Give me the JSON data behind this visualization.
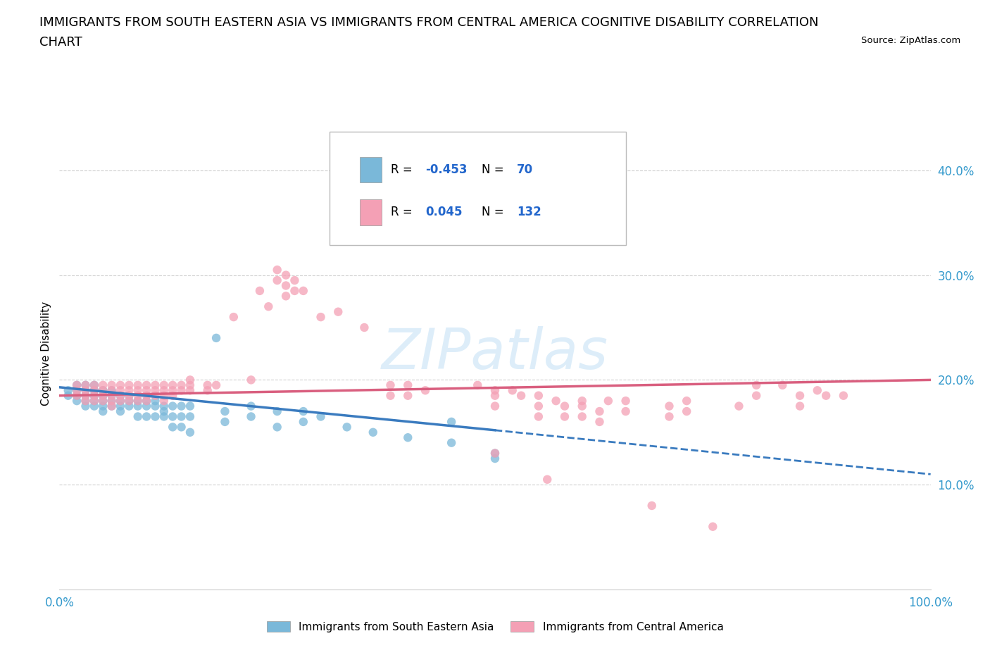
{
  "title_line1": "IMMIGRANTS FROM SOUTH EASTERN ASIA VS IMMIGRANTS FROM CENTRAL AMERICA COGNITIVE DISABILITY CORRELATION",
  "title_line2": "CHART",
  "source": "Source: ZipAtlas.com",
  "ylabel": "Cognitive Disability",
  "watermark": "ZIPatlas",
  "r_blue": -0.453,
  "n_blue": 70,
  "r_pink": 0.045,
  "n_pink": 132,
  "blue_color": "#7ab8d9",
  "pink_color": "#f4a0b5",
  "blue_line_color": "#3a7bbf",
  "pink_line_color": "#d95f7f",
  "blue_scatter": [
    [
      0.01,
      0.19
    ],
    [
      0.01,
      0.185
    ],
    [
      0.02,
      0.195
    ],
    [
      0.02,
      0.19
    ],
    [
      0.02,
      0.185
    ],
    [
      0.02,
      0.18
    ],
    [
      0.03,
      0.195
    ],
    [
      0.03,
      0.19
    ],
    [
      0.03,
      0.185
    ],
    [
      0.03,
      0.18
    ],
    [
      0.03,
      0.175
    ],
    [
      0.04,
      0.195
    ],
    [
      0.04,
      0.19
    ],
    [
      0.04,
      0.185
    ],
    [
      0.04,
      0.18
    ],
    [
      0.04,
      0.175
    ],
    [
      0.05,
      0.19
    ],
    [
      0.05,
      0.185
    ],
    [
      0.05,
      0.18
    ],
    [
      0.05,
      0.175
    ],
    [
      0.05,
      0.17
    ],
    [
      0.06,
      0.19
    ],
    [
      0.06,
      0.185
    ],
    [
      0.06,
      0.18
    ],
    [
      0.06,
      0.175
    ],
    [
      0.07,
      0.185
    ],
    [
      0.07,
      0.18
    ],
    [
      0.07,
      0.175
    ],
    [
      0.07,
      0.17
    ],
    [
      0.08,
      0.185
    ],
    [
      0.08,
      0.18
    ],
    [
      0.08,
      0.175
    ],
    [
      0.09,
      0.18
    ],
    [
      0.09,
      0.175
    ],
    [
      0.09,
      0.165
    ],
    [
      0.1,
      0.18
    ],
    [
      0.1,
      0.175
    ],
    [
      0.1,
      0.165
    ],
    [
      0.11,
      0.18
    ],
    [
      0.11,
      0.175
    ],
    [
      0.11,
      0.165
    ],
    [
      0.12,
      0.175
    ],
    [
      0.12,
      0.17
    ],
    [
      0.12,
      0.165
    ],
    [
      0.13,
      0.175
    ],
    [
      0.13,
      0.165
    ],
    [
      0.13,
      0.155
    ],
    [
      0.14,
      0.175
    ],
    [
      0.14,
      0.165
    ],
    [
      0.14,
      0.155
    ],
    [
      0.15,
      0.175
    ],
    [
      0.15,
      0.165
    ],
    [
      0.15,
      0.15
    ],
    [
      0.18,
      0.24
    ],
    [
      0.19,
      0.17
    ],
    [
      0.19,
      0.16
    ],
    [
      0.22,
      0.175
    ],
    [
      0.22,
      0.165
    ],
    [
      0.25,
      0.17
    ],
    [
      0.25,
      0.155
    ],
    [
      0.28,
      0.17
    ],
    [
      0.28,
      0.16
    ],
    [
      0.3,
      0.165
    ],
    [
      0.33,
      0.155
    ],
    [
      0.36,
      0.15
    ],
    [
      0.4,
      0.145
    ],
    [
      0.45,
      0.16
    ],
    [
      0.45,
      0.14
    ],
    [
      0.5,
      0.13
    ],
    [
      0.5,
      0.125
    ]
  ],
  "pink_scatter": [
    [
      0.02,
      0.195
    ],
    [
      0.02,
      0.19
    ],
    [
      0.02,
      0.185
    ],
    [
      0.03,
      0.195
    ],
    [
      0.03,
      0.19
    ],
    [
      0.03,
      0.185
    ],
    [
      0.03,
      0.18
    ],
    [
      0.04,
      0.195
    ],
    [
      0.04,
      0.19
    ],
    [
      0.04,
      0.185
    ],
    [
      0.04,
      0.18
    ],
    [
      0.05,
      0.195
    ],
    [
      0.05,
      0.19
    ],
    [
      0.05,
      0.185
    ],
    [
      0.05,
      0.18
    ],
    [
      0.06,
      0.195
    ],
    [
      0.06,
      0.19
    ],
    [
      0.06,
      0.185
    ],
    [
      0.06,
      0.18
    ],
    [
      0.06,
      0.175
    ],
    [
      0.07,
      0.195
    ],
    [
      0.07,
      0.19
    ],
    [
      0.07,
      0.185
    ],
    [
      0.07,
      0.18
    ],
    [
      0.08,
      0.195
    ],
    [
      0.08,
      0.19
    ],
    [
      0.08,
      0.185
    ],
    [
      0.08,
      0.18
    ],
    [
      0.09,
      0.195
    ],
    [
      0.09,
      0.19
    ],
    [
      0.09,
      0.185
    ],
    [
      0.09,
      0.18
    ],
    [
      0.1,
      0.195
    ],
    [
      0.1,
      0.19
    ],
    [
      0.1,
      0.185
    ],
    [
      0.1,
      0.18
    ],
    [
      0.11,
      0.195
    ],
    [
      0.11,
      0.19
    ],
    [
      0.11,
      0.185
    ],
    [
      0.12,
      0.195
    ],
    [
      0.12,
      0.19
    ],
    [
      0.12,
      0.185
    ],
    [
      0.12,
      0.18
    ],
    [
      0.13,
      0.195
    ],
    [
      0.13,
      0.19
    ],
    [
      0.13,
      0.185
    ],
    [
      0.14,
      0.195
    ],
    [
      0.14,
      0.19
    ],
    [
      0.15,
      0.2
    ],
    [
      0.15,
      0.195
    ],
    [
      0.15,
      0.19
    ],
    [
      0.17,
      0.195
    ],
    [
      0.17,
      0.19
    ],
    [
      0.18,
      0.195
    ],
    [
      0.2,
      0.26
    ],
    [
      0.22,
      0.2
    ],
    [
      0.23,
      0.285
    ],
    [
      0.24,
      0.27
    ],
    [
      0.25,
      0.305
    ],
    [
      0.25,
      0.295
    ],
    [
      0.26,
      0.3
    ],
    [
      0.26,
      0.29
    ],
    [
      0.26,
      0.28
    ],
    [
      0.27,
      0.295
    ],
    [
      0.27,
      0.285
    ],
    [
      0.28,
      0.285
    ],
    [
      0.3,
      0.26
    ],
    [
      0.32,
      0.265
    ],
    [
      0.35,
      0.25
    ],
    [
      0.38,
      0.195
    ],
    [
      0.38,
      0.185
    ],
    [
      0.4,
      0.195
    ],
    [
      0.4,
      0.185
    ],
    [
      0.42,
      0.19
    ],
    [
      0.45,
      0.385
    ],
    [
      0.47,
      0.34
    ],
    [
      0.48,
      0.195
    ],
    [
      0.5,
      0.19
    ],
    [
      0.5,
      0.185
    ],
    [
      0.5,
      0.175
    ],
    [
      0.5,
      0.13
    ],
    [
      0.52,
      0.19
    ],
    [
      0.53,
      0.185
    ],
    [
      0.55,
      0.185
    ],
    [
      0.55,
      0.175
    ],
    [
      0.55,
      0.165
    ],
    [
      0.56,
      0.105
    ],
    [
      0.57,
      0.18
    ],
    [
      0.58,
      0.175
    ],
    [
      0.58,
      0.165
    ],
    [
      0.6,
      0.18
    ],
    [
      0.6,
      0.175
    ],
    [
      0.6,
      0.165
    ],
    [
      0.62,
      0.17
    ],
    [
      0.62,
      0.16
    ],
    [
      0.63,
      0.18
    ],
    [
      0.65,
      0.18
    ],
    [
      0.65,
      0.17
    ],
    [
      0.68,
      0.08
    ],
    [
      0.7,
      0.175
    ],
    [
      0.7,
      0.165
    ],
    [
      0.72,
      0.18
    ],
    [
      0.72,
      0.17
    ],
    [
      0.75,
      0.06
    ],
    [
      0.78,
      0.175
    ],
    [
      0.8,
      0.195
    ],
    [
      0.8,
      0.185
    ],
    [
      0.83,
      0.195
    ],
    [
      0.85,
      0.185
    ],
    [
      0.85,
      0.175
    ],
    [
      0.87,
      0.19
    ],
    [
      0.88,
      0.185
    ],
    [
      0.9,
      0.185
    ]
  ],
  "xlim": [
    0.0,
    1.0
  ],
  "ylim": [
    0.0,
    0.45
  ],
  "yticks": [
    0.1,
    0.2,
    0.3,
    0.4
  ],
  "ytick_labels": [
    "10.0%",
    "20.0%",
    "30.0%",
    "40.0%"
  ],
  "xtick_labels": [
    "0.0%",
    "100.0%"
  ],
  "grid_color": "#d0d0d0",
  "background_color": "#ffffff",
  "title_fontsize": 13,
  "axis_label_fontsize": 11,
  "tick_label_fontsize": 12,
  "legend_label1": "Immigrants from South Eastern Asia",
  "legend_label2": "Immigrants from Central America",
  "blue_line_start_x": 0.0,
  "blue_line_start_y": 0.193,
  "blue_line_solid_end_x": 0.5,
  "blue_line_solid_end_y": 0.152,
  "blue_line_dash_end_x": 1.0,
  "blue_line_dash_end_y": 0.11,
  "pink_line_start_x": 0.0,
  "pink_line_start_y": 0.185,
  "pink_line_end_x": 1.0,
  "pink_line_end_y": 0.2
}
